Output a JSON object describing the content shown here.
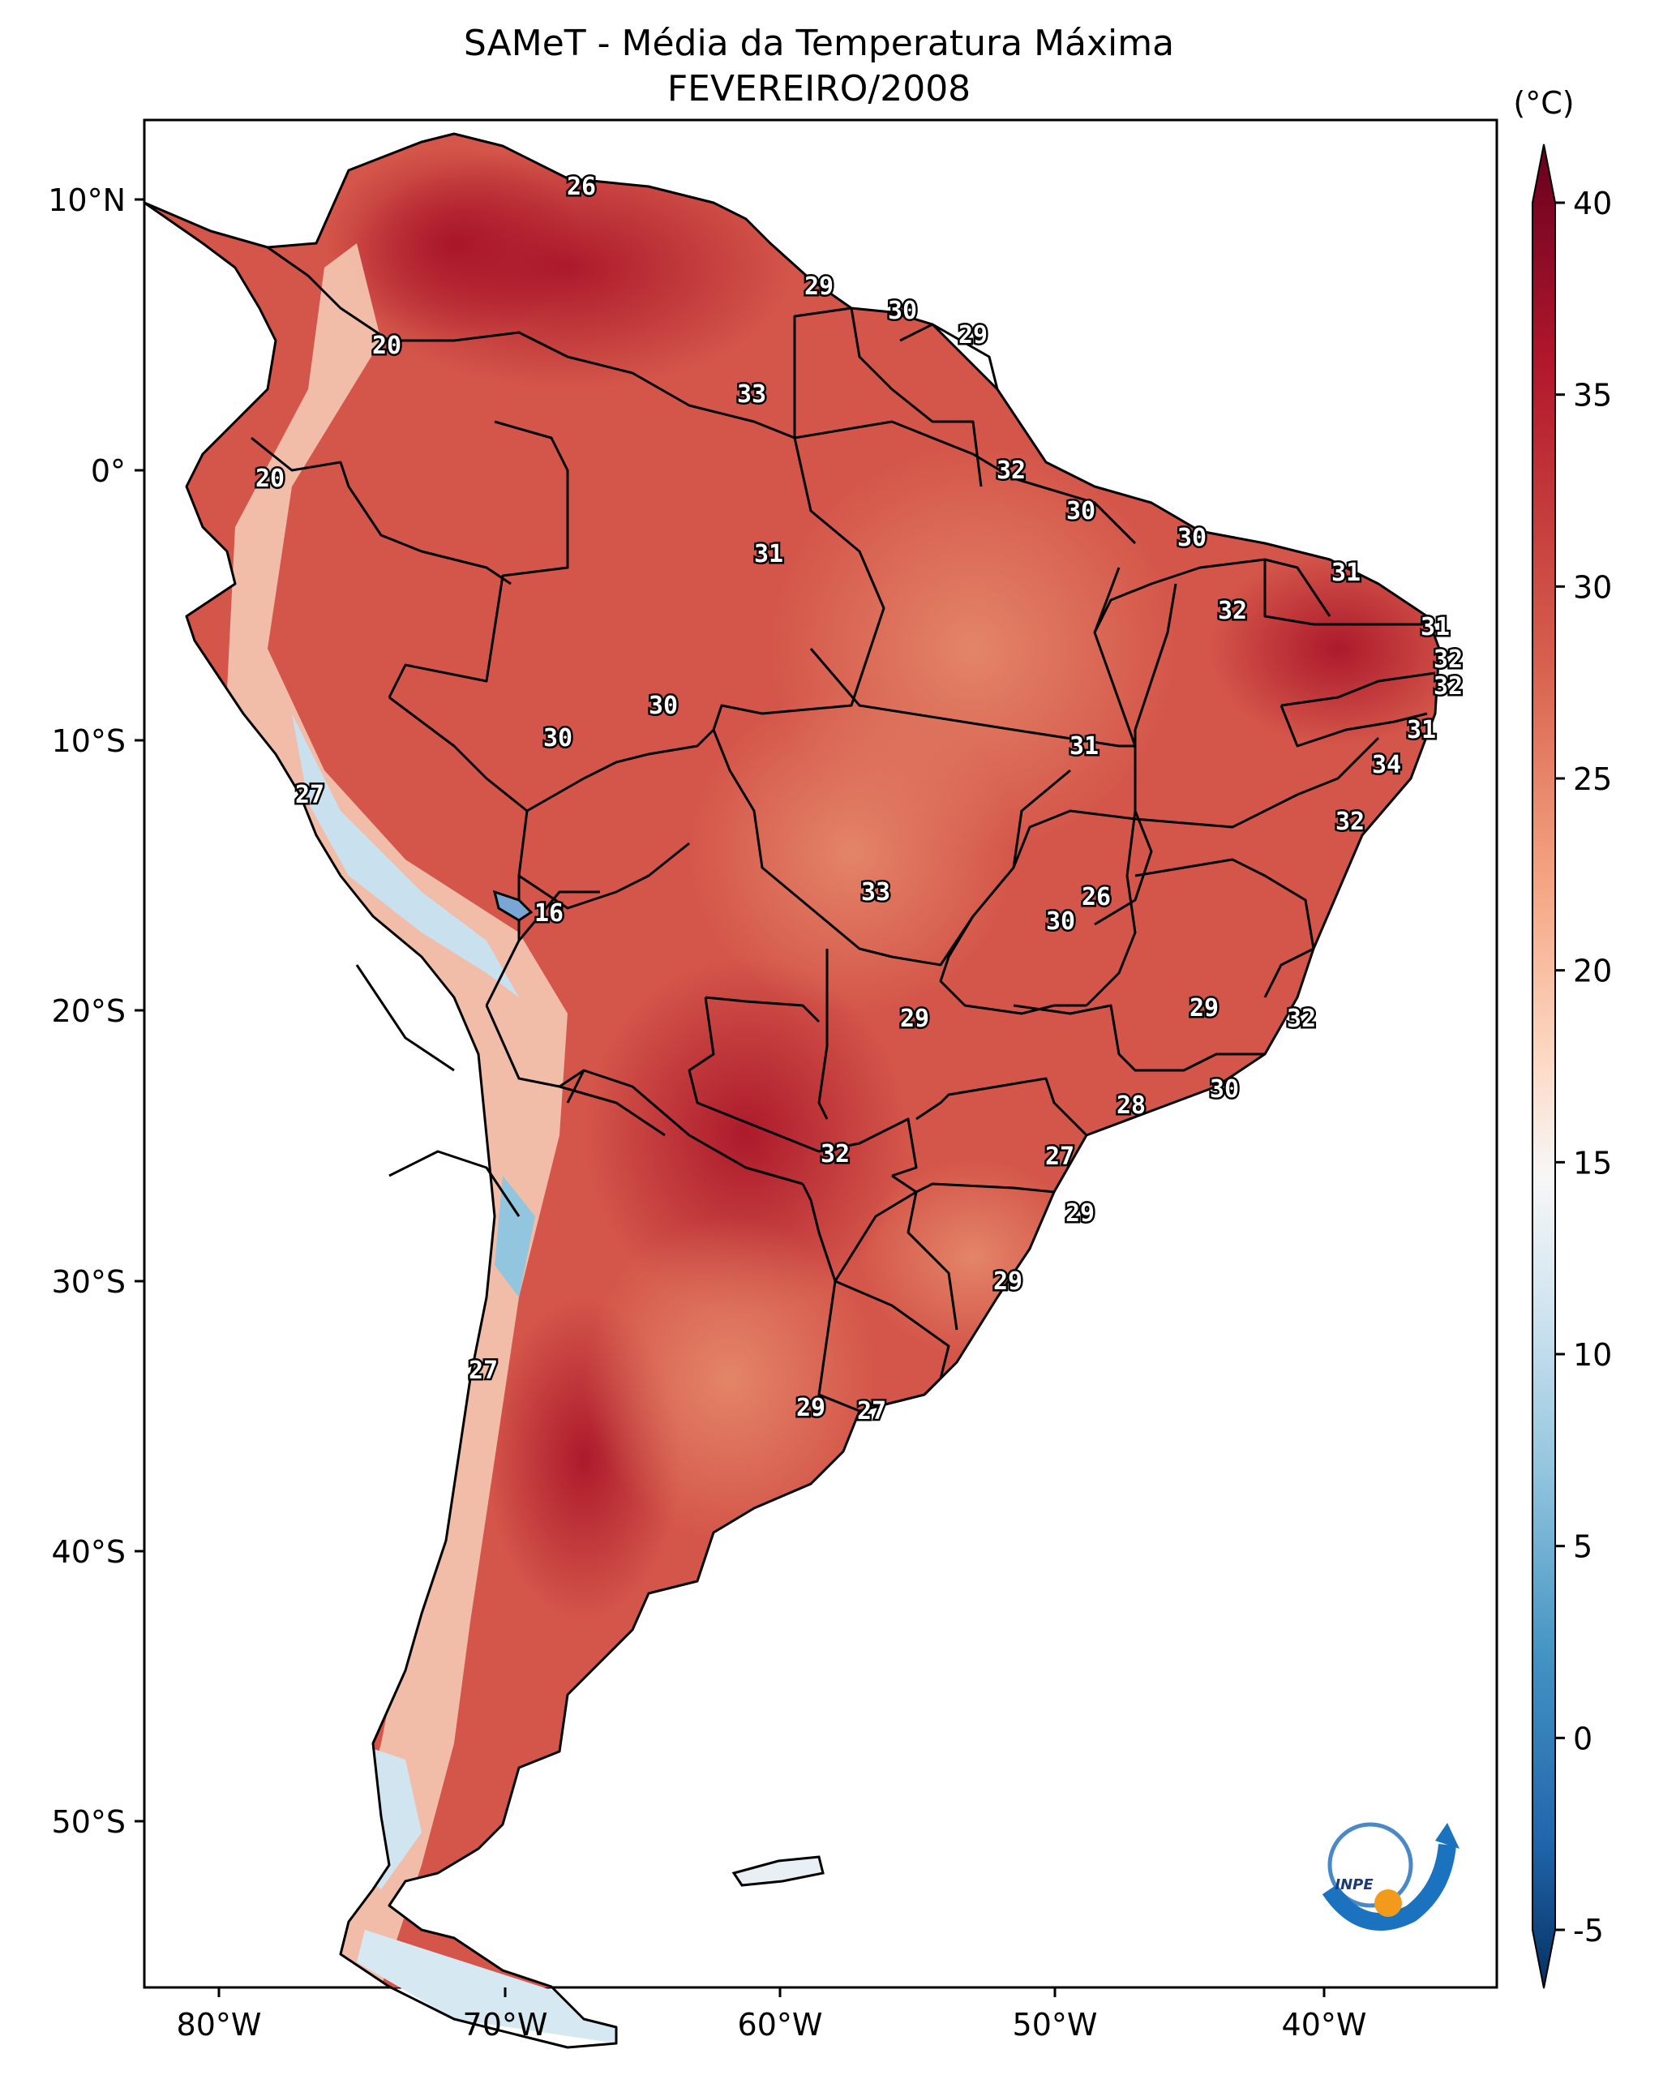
{
  "title": {
    "line1": "SAMeT - Média da Temperatura Máxima",
    "line2": "FEVEREIRO/2008"
  },
  "lon_ticks": [
    "80°W",
    "70°W",
    "60°W",
    "50°W",
    "40°W"
  ],
  "lat_ticks": [
    "10°N",
    "0°",
    "10°S",
    "20°S",
    "30°S",
    "40°S",
    "50°S"
  ],
  "colorbar": {
    "unit": "(°C)",
    "ticks": [
      "40",
      "35",
      "30",
      "25",
      "20",
      "15",
      "10",
      "5",
      "0",
      "-5"
    ],
    "range": [
      -5,
      40
    ],
    "colors": [
      "#67001f",
      "#b2182b",
      "#d6604d",
      "#f4a582",
      "#fddbc7",
      "#f7f7f7",
      "#d1e5f0",
      "#92c5de",
      "#4393c3",
      "#2166ac",
      "#053061"
    ]
  },
  "logo_text": "INPE",
  "contour_labels": [
    "26",
    "29",
    "30",
    "29",
    "20",
    "33",
    "20",
    "32",
    "30",
    "30",
    "31",
    "31",
    "32",
    "31",
    "32",
    "32",
    "30",
    "31",
    "30",
    "31",
    "34",
    "27",
    "32",
    "16",
    "33",
    "26",
    "30",
    "29",
    "29",
    "32",
    "30",
    "28",
    "27",
    "32",
    "29",
    "29",
    "27",
    "29",
    "27"
  ]
}
